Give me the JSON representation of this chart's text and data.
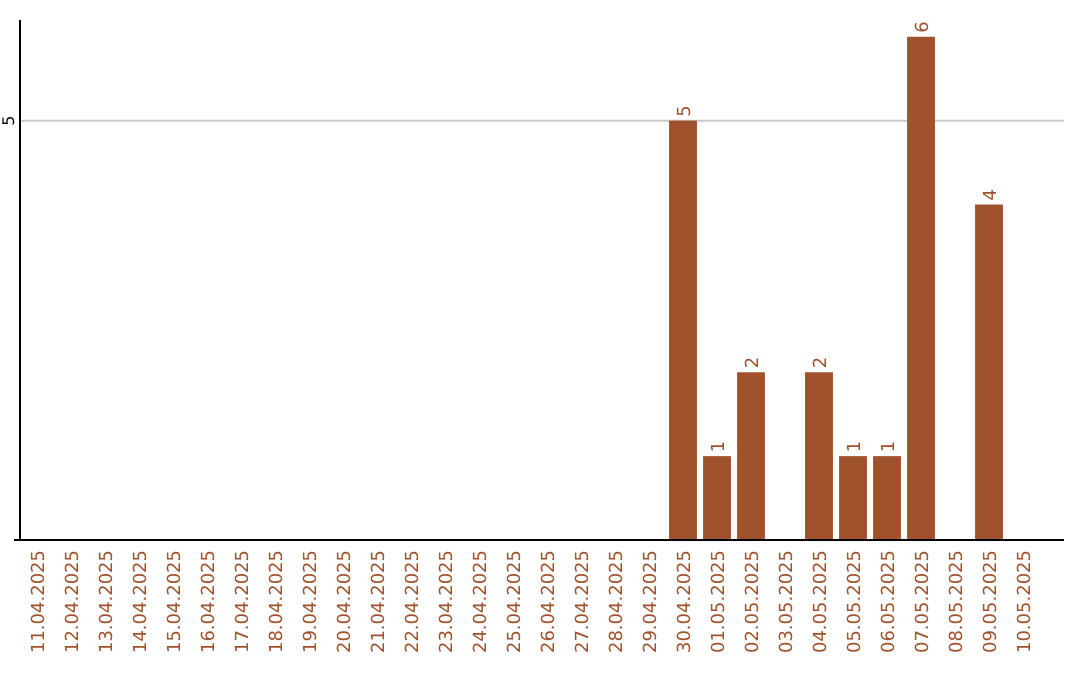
{
  "chart_data": {
    "type": "bar",
    "categories": [
      "11.04.2025",
      "12.04.2025",
      "13.04.2025",
      "14.04.2025",
      "15.04.2025",
      "16.04.2025",
      "17.04.2025",
      "18.04.2025",
      "19.04.2025",
      "20.04.2025",
      "21.04.2025",
      "22.04.2025",
      "23.04.2025",
      "24.04.2025",
      "25.04.2025",
      "26.04.2025",
      "27.04.2025",
      "28.04.2025",
      "29.04.2025",
      "30.04.2025",
      "01.05.2025",
      "02.05.2025",
      "03.05.2025",
      "04.05.2025",
      "05.05.2025",
      "06.05.2025",
      "07.05.2025",
      "08.05.2025",
      "09.05.2025",
      "10.05.2025"
    ],
    "values": [
      null,
      null,
      null,
      null,
      null,
      null,
      null,
      null,
      null,
      null,
      null,
      null,
      null,
      null,
      null,
      null,
      null,
      null,
      null,
      5,
      1,
      2,
      null,
      2,
      1,
      1,
      6,
      null,
      4,
      null
    ],
    "data_labels": true,
    "color": "#a0522d",
    "ylim": [
      0,
      6.2
    ],
    "yticks": [
      {
        "value": 0,
        "label": null
      },
      5
    ],
    "grid": "y"
  }
}
